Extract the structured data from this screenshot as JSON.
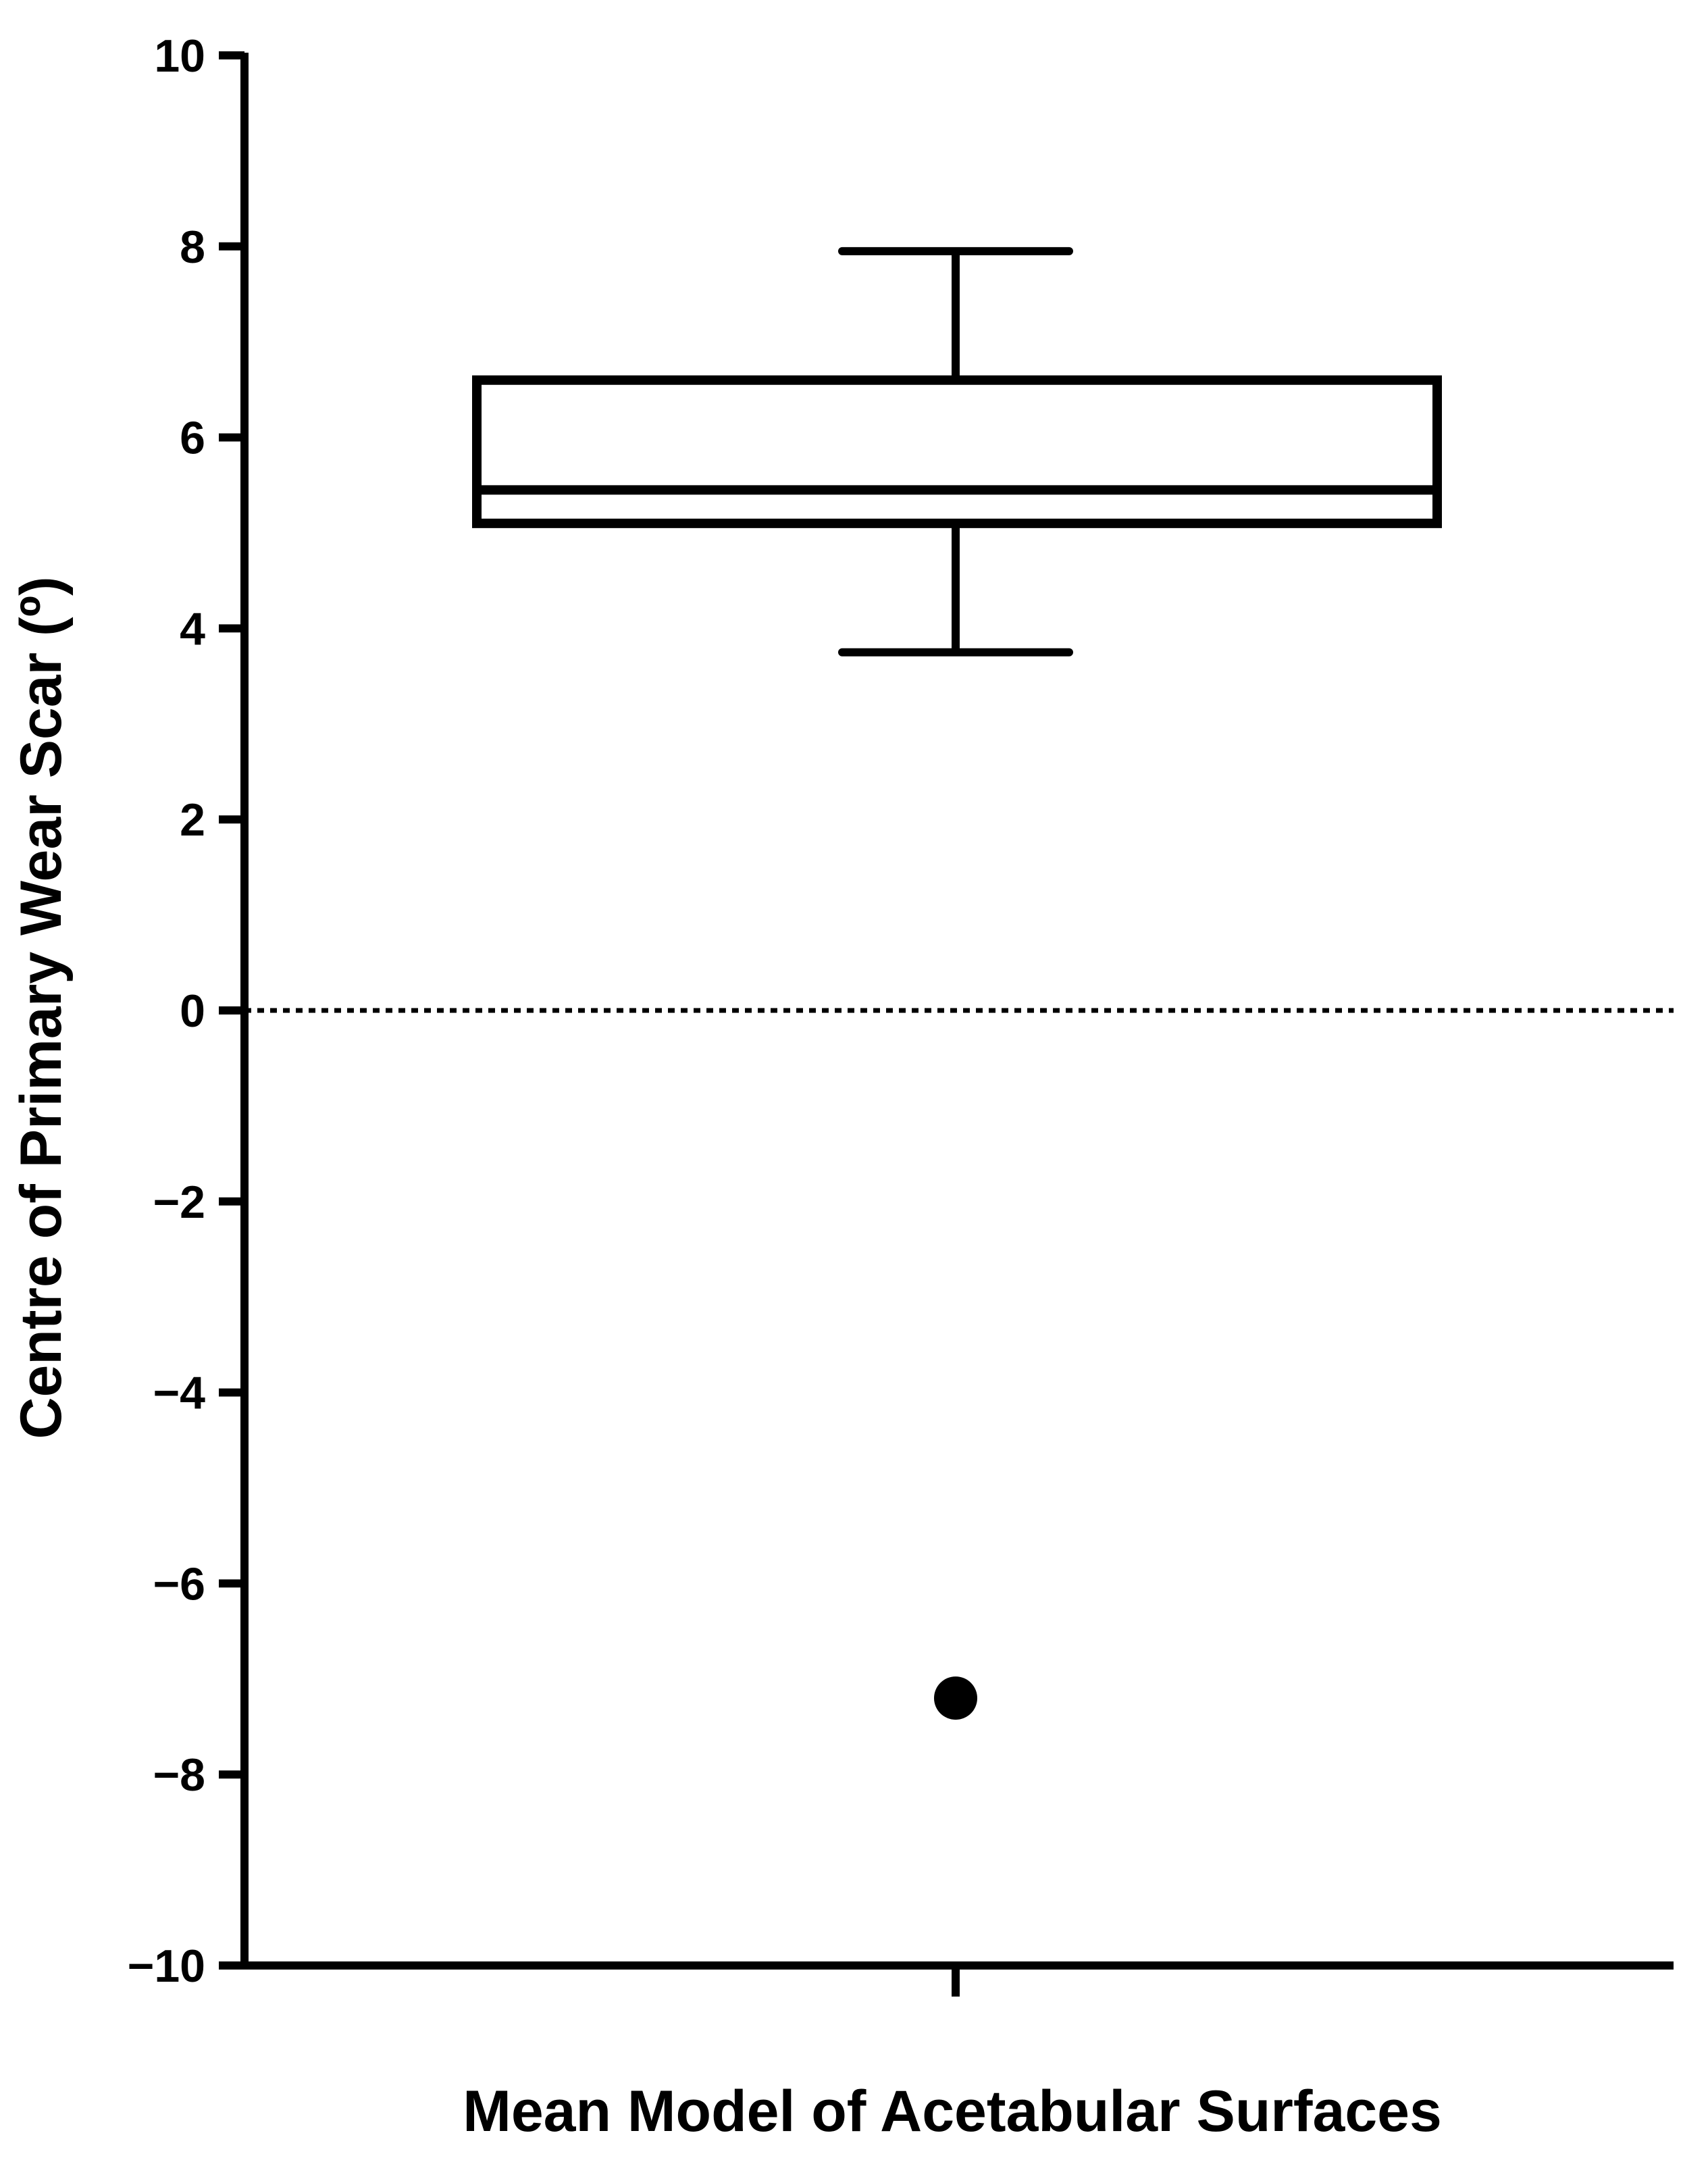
{
  "chart_data": {
    "type": "box",
    "title": "",
    "xlabel": "Mean Model of Acetabular Surfaces",
    "ylabel": "Centre of Primary Wear Scar (º)",
    "ylim": [
      -10,
      10
    ],
    "yticks": [
      10,
      8,
      6,
      4,
      2,
      0,
      -2,
      -4,
      -6,
      -8,
      -10
    ],
    "ytick_labels": [
      "10",
      "8",
      "6",
      "4",
      "2",
      "0",
      "−2",
      "−4",
      "−6",
      "−8",
      "−10"
    ],
    "grid": false,
    "legend": "none",
    "categories": [
      "Mean Model of Acetabular Surfaces"
    ],
    "boxes": [
      {
        "whisker_low": 3.75,
        "q1": 5.1,
        "median": 5.45,
        "q3": 6.6,
        "whisker_high": 7.95,
        "outliers": [
          -7.2
        ]
      }
    ],
    "reference_line": {
      "y": 0,
      "style": "dotted"
    },
    "colors": {
      "line": "#000000",
      "background": "#ffffff"
    }
  }
}
